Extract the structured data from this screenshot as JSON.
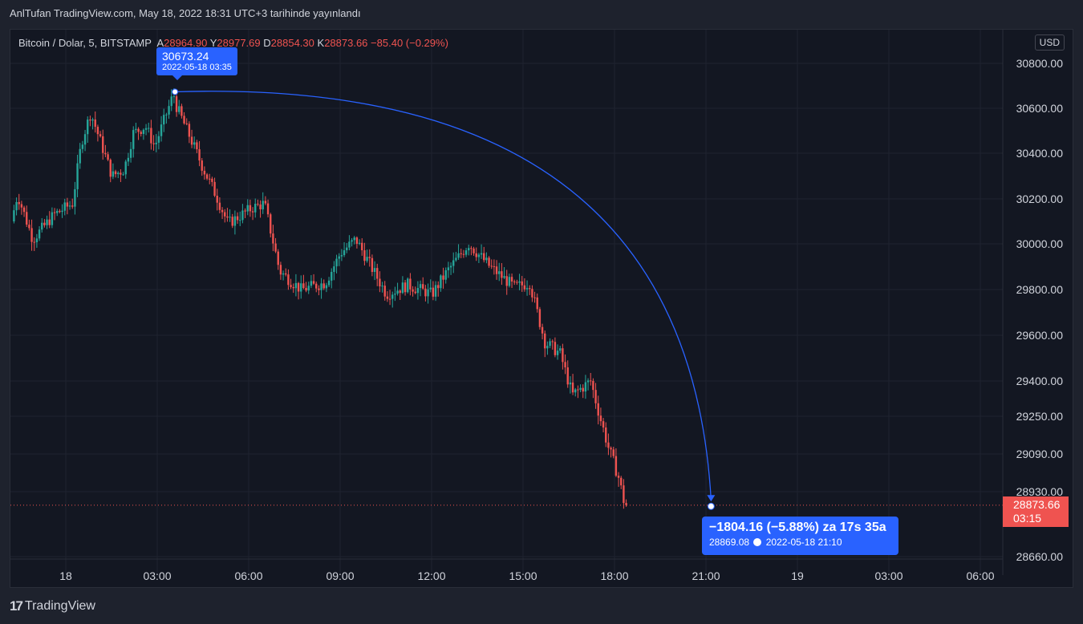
{
  "header": {
    "title": "AnlTufan TradingView.com, May 18, 2022 18:31 UTC+3 tarihinde yayınlandı"
  },
  "legend": {
    "symbol": "Bitcoin / Dolar, 5, BITSTAMP",
    "open_label": "A",
    "open": "28964.90",
    "high_label": "Y",
    "high": "28977.69",
    "low_label": "D",
    "low": "28854.30",
    "close_label": "K",
    "close": "28873.66",
    "change": "−85.40 (−0.29%)"
  },
  "currency_button": "USD",
  "high_marker": {
    "price": "30673.24",
    "date": "2022-05-18 03:35"
  },
  "measure": {
    "line1": "−1804.16 (−5.88%) za 17s 35a",
    "price": "28869.08",
    "date": "2022-05-18  21:10"
  },
  "last_price": {
    "price": "28873.66",
    "countdown": "03:15"
  },
  "brand": {
    "logo": "17",
    "name": "TradingView"
  },
  "colors": {
    "up": "#26a69a",
    "down": "#ef5350",
    "accent": "#2962ff",
    "background": "#131722",
    "grid": "#1f2330"
  },
  "chart_data": {
    "type": "candlestick",
    "title": "",
    "interval_minutes": 5,
    "y_ticks": [
      30800.0,
      30600.0,
      30400.0,
      30200.0,
      30000.0,
      29800.0,
      29600.0,
      29400.0,
      29250.0,
      29090.0,
      28930.0,
      28660.0
    ],
    "y_tick_labels": [
      "30800.00",
      "30600.00",
      "30400.00",
      "30200.00",
      "30000.00",
      "29800.00",
      "29600.00",
      "29400.00",
      "29250.00",
      "29090.00",
      "28930.00",
      "28660.00"
    ],
    "x_ticks": [
      {
        "label": "18",
        "hour": 0
      },
      {
        "label": "03:00",
        "hour": 3
      },
      {
        "label": "06:00",
        "hour": 6
      },
      {
        "label": "09:00",
        "hour": 9
      },
      {
        "label": "12:00",
        "hour": 12
      },
      {
        "label": "15:00",
        "hour": 15
      },
      {
        "label": "18:00",
        "hour": 18
      },
      {
        "label": "21:00",
        "hour": 21
      },
      {
        "label": "19",
        "hour": 24
      },
      {
        "label": "03:00",
        "hour": 27
      },
      {
        "label": "06:00",
        "hour": 30
      }
    ],
    "x_range_hours": [
      -1.74,
      31.1
    ],
    "y_range": [
      28610,
      30880
    ],
    "high_point": {
      "hour": 3.583,
      "price": 30673.24
    },
    "end_point": {
      "hour": 21.167,
      "price": 28869.08
    },
    "last_price": 28873.66,
    "anchors": [
      {
        "hour": -1.7,
        "price": 30100
      },
      {
        "hour": -1.5,
        "price": 30220
      },
      {
        "hour": -1.0,
        "price": 30020
      },
      {
        "hour": -0.3,
        "price": 30130
      },
      {
        "hour": 0.3,
        "price": 30180
      },
      {
        "hour": 0.6,
        "price": 30450
      },
      {
        "hour": 0.9,
        "price": 30580
      },
      {
        "hour": 1.6,
        "price": 30300
      },
      {
        "hour": 2.0,
        "price": 30330
      },
      {
        "hour": 2.3,
        "price": 30490
      },
      {
        "hour": 2.7,
        "price": 30520
      },
      {
        "hour": 3.0,
        "price": 30430
      },
      {
        "hour": 3.58,
        "price": 30650
      },
      {
        "hour": 4.1,
        "price": 30490
      },
      {
        "hour": 4.6,
        "price": 30330
      },
      {
        "hour": 5.0,
        "price": 30220
      },
      {
        "hour": 5.4,
        "price": 30090
      },
      {
        "hour": 6.2,
        "price": 30160
      },
      {
        "hour": 6.6,
        "price": 30180
      },
      {
        "hour": 7.1,
        "price": 29880
      },
      {
        "hour": 7.8,
        "price": 29800
      },
      {
        "hour": 8.6,
        "price": 29830
      },
      {
        "hour": 9.1,
        "price": 29960
      },
      {
        "hour": 9.6,
        "price": 30020
      },
      {
        "hour": 10.1,
        "price": 29900
      },
      {
        "hour": 10.6,
        "price": 29780
      },
      {
        "hour": 11.3,
        "price": 29820
      },
      {
        "hour": 12.1,
        "price": 29780
      },
      {
        "hour": 12.6,
        "price": 29880
      },
      {
        "hour": 13.3,
        "price": 30000
      },
      {
        "hour": 14.0,
        "price": 29900
      },
      {
        "hour": 14.8,
        "price": 29810
      },
      {
        "hour": 15.3,
        "price": 29830
      },
      {
        "hour": 15.8,
        "price": 29570
      },
      {
        "hour": 16.3,
        "price": 29520
      },
      {
        "hour": 16.7,
        "price": 29340
      },
      {
        "hour": 17.3,
        "price": 29400
      },
      {
        "hour": 17.6,
        "price": 29250
      },
      {
        "hour": 17.9,
        "price": 29110
      },
      {
        "hour": 18.2,
        "price": 29000
      },
      {
        "hour": 18.42,
        "price": 28873.66
      }
    ]
  }
}
